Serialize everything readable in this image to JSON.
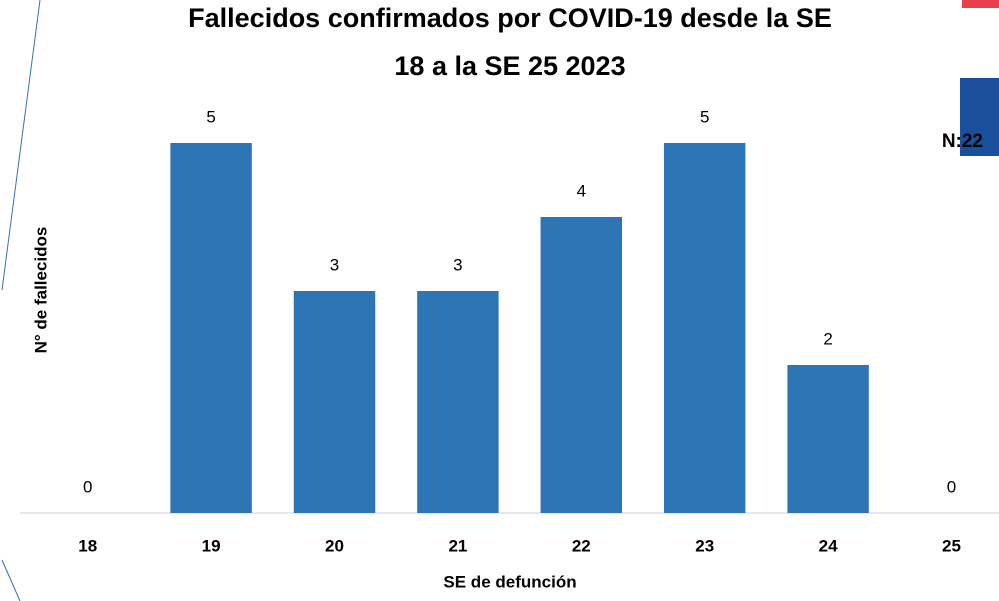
{
  "chart_data": {
    "type": "bar",
    "title": [
      "Fallecidos confirmados por COVID-19 desde la SE",
      "18 a la SE 25 2023"
    ],
    "x_label": "SE de defunción",
    "y_label": "N° de fallecidos",
    "annotation": "N:22",
    "categories": [
      "18",
      "19",
      "20",
      "21",
      "22",
      "23",
      "24",
      "25"
    ],
    "values": [
      0,
      5,
      3,
      3,
      4,
      5,
      2,
      0
    ],
    "color": "#2e75b6",
    "ylim": [
      0,
      6
    ]
  }
}
